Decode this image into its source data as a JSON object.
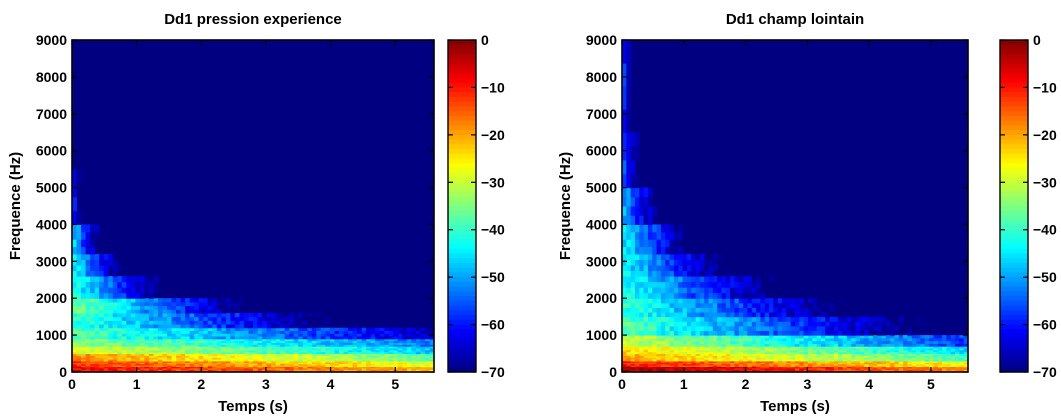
{
  "chart_data": [
    {
      "type": "heatmap",
      "title": "Dd1 pression  experience",
      "xlabel": "Temps (s)",
      "ylabel": "Frequence (Hz)",
      "xlim": [
        0,
        5.6
      ],
      "ylim": [
        0,
        9000
      ],
      "xticks": [
        0,
        1,
        2,
        3,
        4,
        5
      ],
      "yticks": [
        0,
        1000,
        2000,
        3000,
        4000,
        5000,
        6000,
        7000,
        8000,
        9000
      ],
      "colorbar": {
        "range": [
          -70,
          0
        ],
        "ticks": [
          0,
          -10,
          -20,
          -30,
          -40,
          -50,
          -60,
          -70
        ],
        "colormap": "jet"
      },
      "background_level_db": -70,
      "bands": [
        {
          "freq": [
            0,
            150
          ],
          "db": -8,
          "decay_db_per_s": 2.5
        },
        {
          "freq": [
            150,
            300
          ],
          "db": -12,
          "decay_db_per_s": 3
        },
        {
          "freq": [
            300,
            500
          ],
          "db": -18,
          "decay_db_per_s": 3.5
        },
        {
          "freq": [
            500,
            700
          ],
          "db": -28,
          "decay_db_per_s": 3.5
        },
        {
          "freq": [
            700,
            900
          ],
          "db": -34,
          "decay_db_per_s": 3.5
        },
        {
          "freq": [
            900,
            1200
          ],
          "db": -38,
          "decay_db_per_s": 5
        },
        {
          "freq": [
            1200,
            1600
          ],
          "db": -40,
          "decay_db_per_s": 8
        },
        {
          "freq": [
            1600,
            2000
          ],
          "db": -35,
          "decay_db_per_s": 14
        },
        {
          "freq": [
            2000,
            2600
          ],
          "db": -42,
          "decay_db_per_s": 22
        },
        {
          "freq": [
            2600,
            3200
          ],
          "db": -45,
          "decay_db_per_s": 38
        },
        {
          "freq": [
            3200,
            4000
          ],
          "db": -48,
          "decay_db_per_s": 60
        },
        {
          "freq": [
            4000,
            5500
          ],
          "db": -60,
          "decay_db_per_s": 90
        }
      ]
    },
    {
      "type": "heatmap",
      "title": "Dd1 champ lointain",
      "xlabel": "Temps (s)",
      "ylabel": "Frequence (Hz)",
      "xlim": [
        0,
        5.6
      ],
      "ylim": [
        0,
        9000
      ],
      "xticks": [
        0,
        1,
        2,
        3,
        4,
        5
      ],
      "yticks": [
        0,
        1000,
        2000,
        3000,
        4000,
        5000,
        6000,
        7000,
        8000,
        9000
      ],
      "colorbar": {
        "range": [
          -70,
          0
        ],
        "ticks": [
          0,
          -10,
          -20,
          -30,
          -40,
          -50,
          -60,
          -70
        ],
        "colormap": "jet"
      },
      "background_level_db": -70,
      "bands": [
        {
          "freq": [
            0,
            150
          ],
          "db": -2,
          "decay_db_per_s": 3
        },
        {
          "freq": [
            150,
            300
          ],
          "db": -10,
          "decay_db_per_s": 3
        },
        {
          "freq": [
            300,
            500
          ],
          "db": -20,
          "decay_db_per_s": 3.5
        },
        {
          "freq": [
            500,
            700
          ],
          "db": -24,
          "decay_db_per_s": 4
        },
        {
          "freq": [
            700,
            1000
          ],
          "db": -30,
          "decay_db_per_s": 5
        },
        {
          "freq": [
            1000,
            1500
          ],
          "db": -38,
          "decay_db_per_s": 7
        },
        {
          "freq": [
            1500,
            2000
          ],
          "db": -40,
          "decay_db_per_s": 9
        },
        {
          "freq": [
            2000,
            2600
          ],
          "db": -42,
          "decay_db_per_s": 12
        },
        {
          "freq": [
            2600,
            3200
          ],
          "db": -44,
          "decay_db_per_s": 17
        },
        {
          "freq": [
            3200,
            4000
          ],
          "db": -46,
          "decay_db_per_s": 24
        },
        {
          "freq": [
            4000,
            5000
          ],
          "db": -50,
          "decay_db_per_s": 40
        },
        {
          "freq": [
            5000,
            6500
          ],
          "db": -55,
          "decay_db_per_s": 70
        },
        {
          "freq": [
            6500,
            9000
          ],
          "db": -60,
          "decay_db_per_s": 120
        }
      ]
    }
  ]
}
